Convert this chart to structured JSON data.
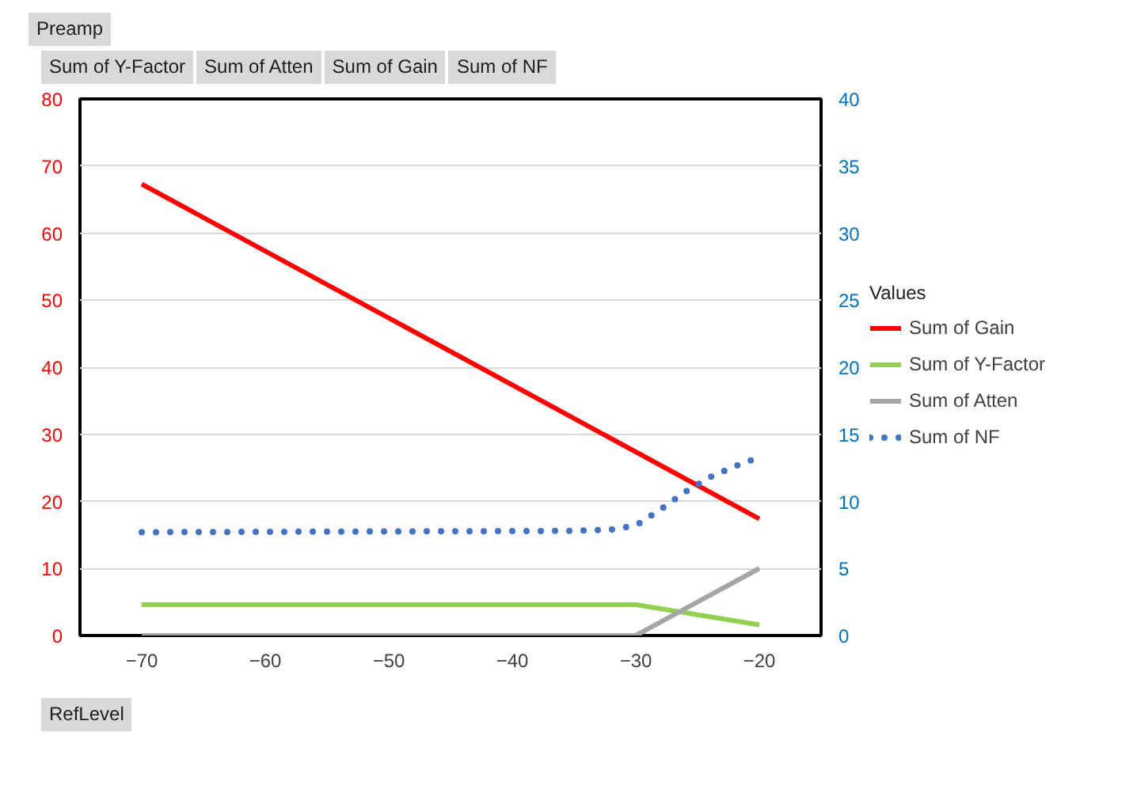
{
  "chart_data": {
    "type": "line",
    "annotations": [
      "Preamp",
      "Sum of Y-Factor",
      "Sum of Atten",
      "Sum of Gain",
      "Sum of NF",
      "RefLevel"
    ],
    "legend_title": "Values",
    "series": [
      {
        "name": "Sum of Gain",
        "color": "#ff0000",
        "x": [
          -70,
          -20
        ],
        "values": [
          67.3,
          17.4
        ]
      },
      {
        "name": "Sum of Y-Factor",
        "color": "#92d050",
        "x": [
          -70,
          -30,
          -20
        ],
        "values": [
          4.6,
          4.6,
          1.6
        ]
      },
      {
        "name": "Sum of Atten",
        "color": "#a5a5a5",
        "x": [
          -70,
          -30,
          -20
        ],
        "values": [
          0,
          0,
          10
        ]
      },
      {
        "name": "Sum of NF",
        "color": "#4472c4",
        "axis": "y2",
        "line_style": "dotted",
        "x": [
          -70,
          -35,
          -32,
          -30,
          -28,
          -26,
          -24,
          -22,
          -20
        ],
        "values": [
          7.7,
          7.8,
          7.9,
          8.2,
          9.4,
          10.7,
          11.8,
          12.6,
          13.3
        ]
      }
    ],
    "xlim": [
      -75,
      -15
    ],
    "xticks": [
      -70,
      -60,
      -50,
      -40,
      -30,
      -20
    ],
    "ylim": [
      0,
      80
    ],
    "yticks": [
      0,
      10,
      20,
      30,
      40,
      50,
      60,
      70,
      80
    ],
    "y2lim": [
      0,
      40
    ],
    "y2ticks": [
      0,
      5,
      10,
      15,
      20,
      25,
      30,
      35,
      40
    ],
    "grid": "y",
    "legend": "right"
  }
}
